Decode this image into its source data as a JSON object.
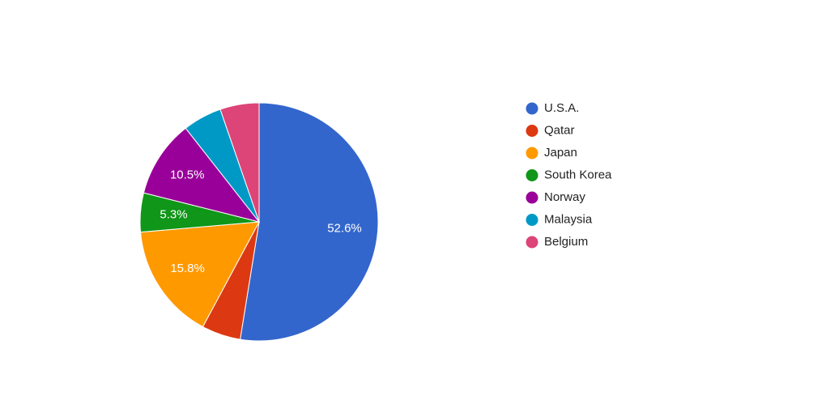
{
  "chart_data": {
    "type": "pie",
    "categories": [
      "U.S.A.",
      "Qatar",
      "Japan",
      "South Korea",
      "Norway",
      "Malaysia",
      "Belgium"
    ],
    "values": [
      52.6,
      5.3,
      15.8,
      5.3,
      10.5,
      5.3,
      5.3
    ],
    "value_labels": [
      "52.6%",
      null,
      "15.8%",
      "5.3%",
      "10.5%",
      null,
      null
    ],
    "colors": [
      "#3366cc",
      "#dc3912",
      "#ff9900",
      "#109618",
      "#990099",
      "#0099c6",
      "#dd4477"
    ],
    "legend": "right"
  }
}
